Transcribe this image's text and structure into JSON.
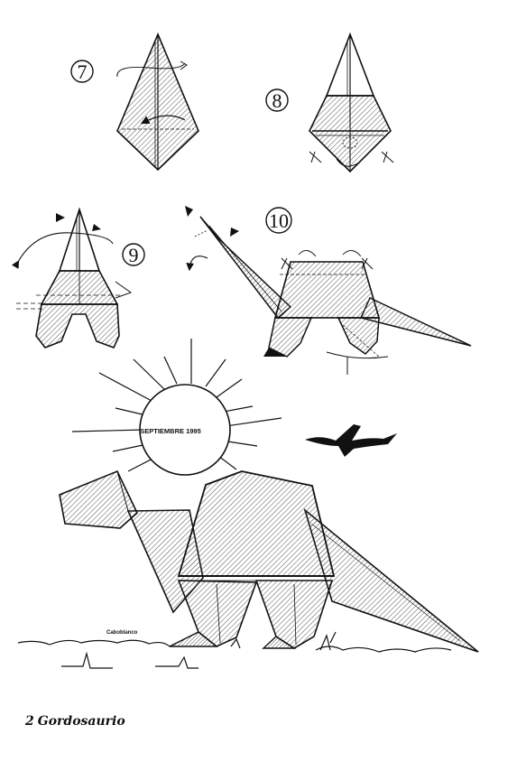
{
  "steps": [
    {
      "number": "7"
    },
    {
      "number": "8"
    },
    {
      "number": "9"
    },
    {
      "number": "10"
    }
  ],
  "sun": {
    "label": "SEPTIEMBRE 1995"
  },
  "signature": "Caboblanco",
  "footer": {
    "page_number": "2",
    "title": "Gordosaurio"
  },
  "colors": {
    "ink": "#111111",
    "paper": "#ffffff"
  }
}
